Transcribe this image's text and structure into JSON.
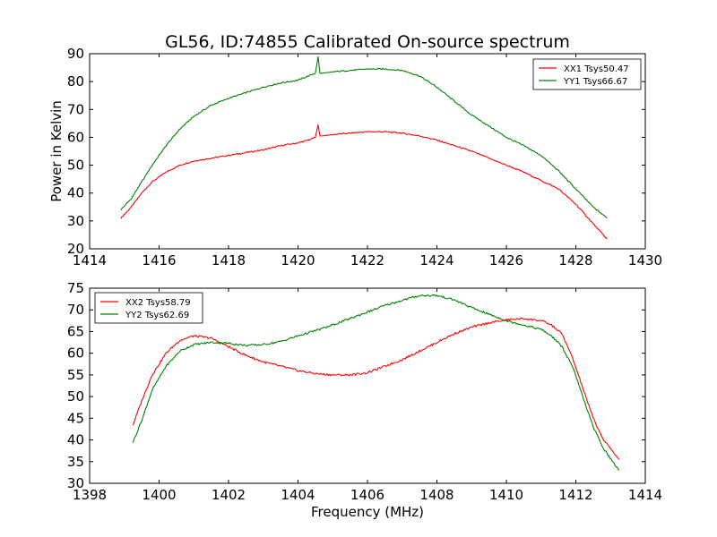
{
  "figure": {
    "title": "GL56, ID:74855 Calibrated On-source spectrum",
    "xlabel": "Frequency (MHz)",
    "ylabel": "Power in Kelvin"
  },
  "chart_data": [
    {
      "type": "line",
      "xlim": [
        1414,
        1430
      ],
      "ylim": [
        20,
        90
      ],
      "xticks": [
        1414,
        1416,
        1418,
        1420,
        1422,
        1424,
        1426,
        1428,
        1430
      ],
      "yticks": [
        20,
        30,
        40,
        50,
        60,
        70,
        80,
        90
      ],
      "legend_position": "top-right",
      "grid": false,
      "series": [
        {
          "name": "XX1 Tsys50.47",
          "color": "#ff0000",
          "x": [
            1414.9,
            1415.2,
            1415.5,
            1415.8,
            1416.2,
            1416.6,
            1417.0,
            1417.5,
            1418.0,
            1418.5,
            1419.0,
            1419.5,
            1420.0,
            1420.3,
            1420.5,
            1420.58,
            1420.63,
            1420.7,
            1421.0,
            1421.5,
            1422.0,
            1422.5,
            1423.0,
            1423.5,
            1424.0,
            1424.5,
            1425.0,
            1425.5,
            1426.0,
            1426.5,
            1427.0,
            1427.5,
            1428.0,
            1428.5,
            1428.9
          ],
          "values": [
            31,
            35,
            40,
            44,
            47.5,
            50,
            51.5,
            52.5,
            53.5,
            54.5,
            55.5,
            57,
            58,
            59,
            60,
            64.5,
            60.5,
            60.5,
            61,
            61.5,
            62,
            62,
            61.5,
            60.5,
            59,
            57,
            55,
            52.5,
            50,
            47.5,
            44.5,
            41.5,
            36,
            29,
            23.5
          ]
        },
        {
          "name": "YY1 Tsys66.67",
          "color": "#008000",
          "x": [
            1414.9,
            1415.2,
            1415.5,
            1415.8,
            1416.2,
            1416.6,
            1417.0,
            1417.5,
            1418.0,
            1418.5,
            1419.0,
            1419.5,
            1420.0,
            1420.3,
            1420.5,
            1420.58,
            1420.63,
            1420.7,
            1421.0,
            1421.5,
            1422.0,
            1422.5,
            1423.0,
            1423.5,
            1424.0,
            1424.5,
            1425.0,
            1425.5,
            1426.0,
            1426.5,
            1427.0,
            1427.5,
            1428.0,
            1428.5,
            1428.9
          ],
          "values": [
            34,
            38,
            44,
            50,
            57,
            63,
            67.5,
            71.5,
            74,
            76,
            78,
            79.5,
            80.5,
            82,
            83,
            89,
            83,
            83,
            83.5,
            84,
            84.5,
            84.5,
            84,
            82,
            78,
            73,
            68,
            64,
            60,
            57,
            53.5,
            48,
            41.5,
            35,
            31
          ]
        }
      ]
    },
    {
      "type": "line",
      "xlim": [
        1398,
        1414
      ],
      "ylim": [
        30,
        75
      ],
      "xticks": [
        1398,
        1400,
        1402,
        1404,
        1406,
        1408,
        1410,
        1412,
        1414
      ],
      "yticks": [
        30,
        35,
        40,
        45,
        50,
        55,
        60,
        65,
        70,
        75
      ],
      "legend_position": "top-left",
      "grid": false,
      "series": [
        {
          "name": "XX2 Tsys58.79",
          "color": "#ff0000",
          "x": [
            1399.25,
            1399.5,
            1399.8,
            1400.2,
            1400.6,
            1401.0,
            1401.5,
            1402.0,
            1402.5,
            1403.0,
            1403.5,
            1404.0,
            1404.5,
            1405.0,
            1405.5,
            1406.0,
            1406.5,
            1407.0,
            1407.5,
            1408.0,
            1408.5,
            1409.0,
            1409.5,
            1410.0,
            1410.5,
            1411.0,
            1411.3,
            1411.6,
            1411.9,
            1412.2,
            1412.5,
            1412.8,
            1413.1,
            1413.25
          ],
          "values": [
            43.5,
            49,
            55,
            60,
            63,
            64,
            63.5,
            61.5,
            59.5,
            58,
            57,
            56,
            55.3,
            55,
            55,
            55.5,
            57,
            58.5,
            60.5,
            62.5,
            64.5,
            66,
            67,
            67.7,
            68,
            67.5,
            66.5,
            64.5,
            59,
            52,
            45,
            40,
            37,
            35.5
          ]
        },
        {
          "name": "YY2 Tsys62.69",
          "color": "#008000",
          "x": [
            1399.25,
            1399.5,
            1399.8,
            1400.2,
            1400.6,
            1401.0,
            1401.5,
            1402.0,
            1402.5,
            1403.0,
            1403.5,
            1404.0,
            1404.5,
            1405.0,
            1405.5,
            1406.0,
            1406.5,
            1407.0,
            1407.5,
            1408.0,
            1408.5,
            1409.0,
            1409.5,
            1410.0,
            1410.5,
            1411.0,
            1411.3,
            1411.6,
            1411.9,
            1412.2,
            1412.5,
            1412.8,
            1413.1,
            1413.25
          ],
          "values": [
            39.5,
            44.5,
            51.5,
            57,
            60.5,
            62,
            62.5,
            62.3,
            61.8,
            62,
            62.7,
            64,
            65.2,
            66.5,
            68,
            69.5,
            71,
            72.2,
            73.3,
            73.3,
            72.3,
            70.5,
            69,
            67.5,
            66.5,
            65.5,
            64,
            61.5,
            57,
            50,
            43,
            38,
            34.5,
            33
          ]
        }
      ]
    }
  ]
}
